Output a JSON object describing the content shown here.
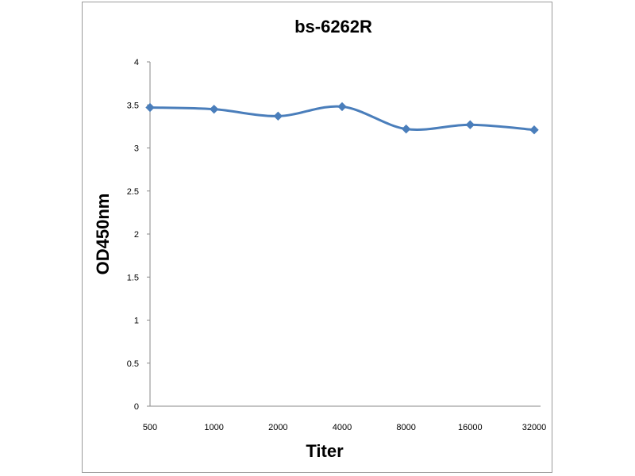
{
  "chart_data": {
    "type": "line",
    "title": "bs-6262R",
    "xlabel": "Titer",
    "ylabel": "OD450nm",
    "categories": [
      "500",
      "1000",
      "2000",
      "4000",
      "8000",
      "16000",
      "32000"
    ],
    "series": [
      {
        "values": [
          3.47,
          3.45,
          3.37,
          3.48,
          3.22,
          3.27,
          3.21
        ],
        "color": "#4a7ebb",
        "marker": "diamond"
      }
    ],
    "ylim": [
      0,
      4
    ],
    "yticks": [
      "0",
      "0.5",
      "1",
      "1.5",
      "2",
      "2.5",
      "3",
      "3.5",
      "4"
    ],
    "grid": false,
    "legend": "none"
  }
}
